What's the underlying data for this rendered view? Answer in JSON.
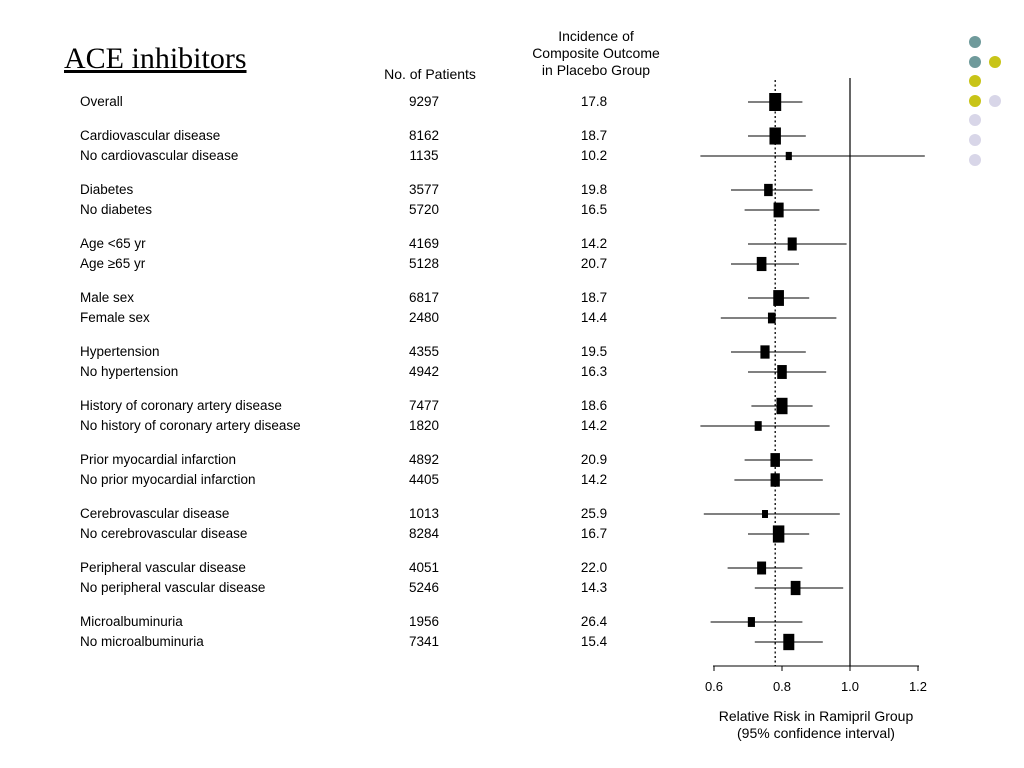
{
  "slide": {
    "title": "ACE inhibitors"
  },
  "columns": {
    "patients_header": "No. of Patients",
    "incidence_header": [
      "Incidence of",
      "Composite Outcome",
      "in Placebo Group"
    ]
  },
  "decoration_colors": [
    "#6f9a9b",
    "#c8c418",
    "#d8d6e8"
  ],
  "chart_data": {
    "type": "forest",
    "xlabel": [
      "Relative Risk in Ramipril Group",
      "(95% confidence interval)"
    ],
    "xlim": [
      0.55,
      1.25
    ],
    "xticks": [
      0.6,
      0.8,
      1.0,
      1.2
    ],
    "xtick_labels": [
      "0.6",
      "0.8",
      "1.0",
      "1.2"
    ],
    "reference_line": 1.0,
    "overall_estimate_line": 0.78,
    "rows": [
      {
        "group": 0,
        "label": "Overall",
        "patients": "9297",
        "incidence": "17.8",
        "rr": 0.78,
        "lo": 0.7,
        "hi": 0.86,
        "weight": 1.0
      },
      {
        "group": 1,
        "label": "Cardiovascular disease",
        "patients": "8162",
        "incidence": "18.7",
        "rr": 0.78,
        "lo": 0.7,
        "hi": 0.87,
        "weight": 0.88
      },
      {
        "group": 1,
        "label": "No cardiovascular disease",
        "patients": "1135",
        "incidence": "10.2",
        "rr": 0.82,
        "lo": 0.56,
        "hi": 1.22,
        "weight": 0.12
      },
      {
        "group": 2,
        "label": "Diabetes",
        "patients": "3577",
        "incidence": "19.8",
        "rr": 0.76,
        "lo": 0.65,
        "hi": 0.89,
        "weight": 0.38
      },
      {
        "group": 2,
        "label": "No diabetes",
        "patients": "5720",
        "incidence": "16.5",
        "rr": 0.79,
        "lo": 0.69,
        "hi": 0.91,
        "weight": 0.62
      },
      {
        "group": 3,
        "label": "Age <65 yr",
        "patients": "4169",
        "incidence": "14.2",
        "rr": 0.83,
        "lo": 0.7,
        "hi": 0.99,
        "weight": 0.45
      },
      {
        "group": 3,
        "label": "Age ≥65 yr",
        "patients": "5128",
        "incidence": "20.7",
        "rr": 0.74,
        "lo": 0.65,
        "hi": 0.85,
        "weight": 0.55
      },
      {
        "group": 4,
        "label": "Male sex",
        "patients": "6817",
        "incidence": "18.7",
        "rr": 0.79,
        "lo": 0.7,
        "hi": 0.88,
        "weight": 0.73
      },
      {
        "group": 4,
        "label": "Female sex",
        "patients": "2480",
        "incidence": "14.4",
        "rr": 0.77,
        "lo": 0.62,
        "hi": 0.96,
        "weight": 0.27
      },
      {
        "group": 5,
        "label": "Hypertension",
        "patients": "4355",
        "incidence": "19.5",
        "rr": 0.75,
        "lo": 0.65,
        "hi": 0.87,
        "weight": 0.47
      },
      {
        "group": 5,
        "label": "No hypertension",
        "patients": "4942",
        "incidence": "16.3",
        "rr": 0.8,
        "lo": 0.7,
        "hi": 0.93,
        "weight": 0.53
      },
      {
        "group": 6,
        "label": "History of coronary artery disease",
        "patients": "7477",
        "incidence": "18.6",
        "rr": 0.8,
        "lo": 0.71,
        "hi": 0.89,
        "weight": 0.8
      },
      {
        "group": 6,
        "label": "No history of coronary artery disease",
        "patients": "1820",
        "incidence": "14.2",
        "rr": 0.73,
        "lo": 0.56,
        "hi": 0.94,
        "weight": 0.2
      },
      {
        "group": 7,
        "label": "Prior myocardial infarction",
        "patients": "4892",
        "incidence": "20.9",
        "rr": 0.78,
        "lo": 0.69,
        "hi": 0.89,
        "weight": 0.52
      },
      {
        "group": 7,
        "label": "No prior myocardial infarction",
        "patients": "4405",
        "incidence": "14.2",
        "rr": 0.78,
        "lo": 0.66,
        "hi": 0.92,
        "weight": 0.48
      },
      {
        "group": 8,
        "label": "Cerebrovascular disease",
        "patients": "1013",
        "incidence": "25.9",
        "rr": 0.75,
        "lo": 0.57,
        "hi": 0.97,
        "weight": 0.11
      },
      {
        "group": 8,
        "label": "No cerebrovascular disease",
        "patients": "8284",
        "incidence": "16.7",
        "rr": 0.79,
        "lo": 0.7,
        "hi": 0.88,
        "weight": 0.89
      },
      {
        "group": 9,
        "label": "Peripheral vascular disease",
        "patients": "4051",
        "incidence": "22.0",
        "rr": 0.74,
        "lo": 0.64,
        "hi": 0.86,
        "weight": 0.44
      },
      {
        "group": 9,
        "label": "No peripheral vascular disease",
        "patients": "5246",
        "incidence": "14.3",
        "rr": 0.84,
        "lo": 0.72,
        "hi": 0.98,
        "weight": 0.56
      },
      {
        "group": 10,
        "label": "Microalbuminuria",
        "patients": "1956",
        "incidence": "26.4",
        "rr": 0.71,
        "lo": 0.59,
        "hi": 0.86,
        "weight": 0.21
      },
      {
        "group": 10,
        "label": "No microalbuminuria",
        "patients": "7341",
        "incidence": "15.4",
        "rr": 0.82,
        "lo": 0.72,
        "hi": 0.92,
        "weight": 0.79
      }
    ]
  }
}
